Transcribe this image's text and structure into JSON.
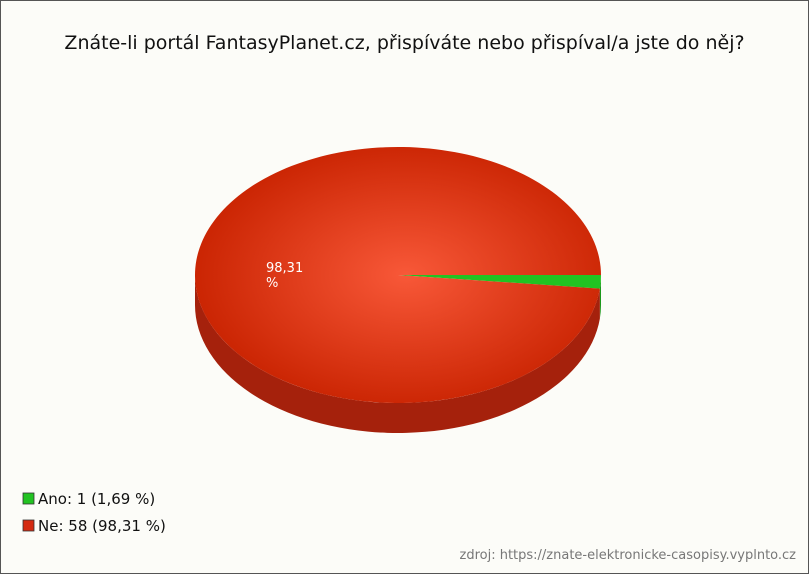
{
  "chart_data": {
    "type": "pie",
    "title": "Znáte-li portál FantasyPlanet.cz, přispíváte nebo přispíval/a jste do něj?",
    "categories": [
      "Ano",
      "Ne"
    ],
    "values": [
      1.69,
      98.31
    ],
    "value_labels": [
      null,
      "98,31 %"
    ],
    "colors": [
      "#22c322",
      "#d42a10"
    ],
    "legend_labels": [
      "Ano: 1 (1,69 %)",
      "Ne: 58 (98,31 %)"
    ],
    "source": "zdroj: https://znate-elektronicke-casopisy.vyplnto.cz"
  }
}
